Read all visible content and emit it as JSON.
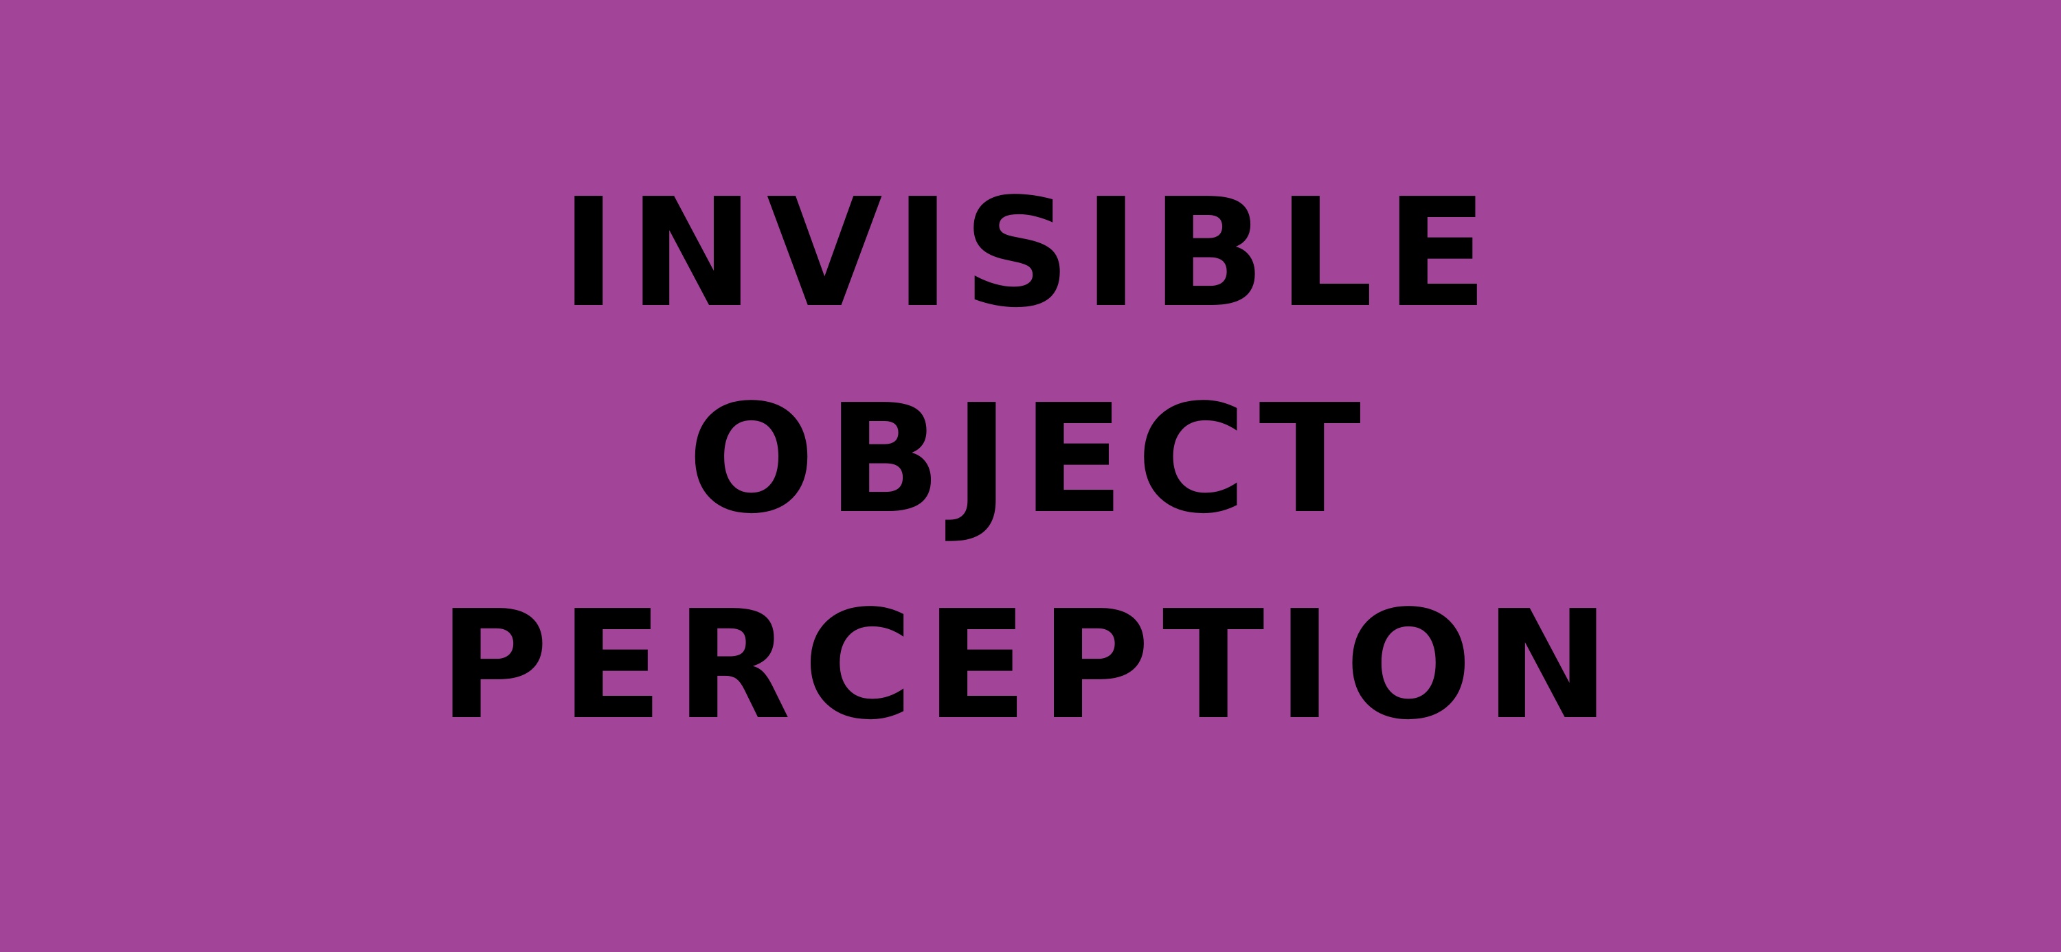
{
  "background_color": "#a24599",
  "text_color": "#000000",
  "title": {
    "lines": [
      "INVISIBLE",
      "OBJECT",
      "PERCEPTION"
    ]
  }
}
